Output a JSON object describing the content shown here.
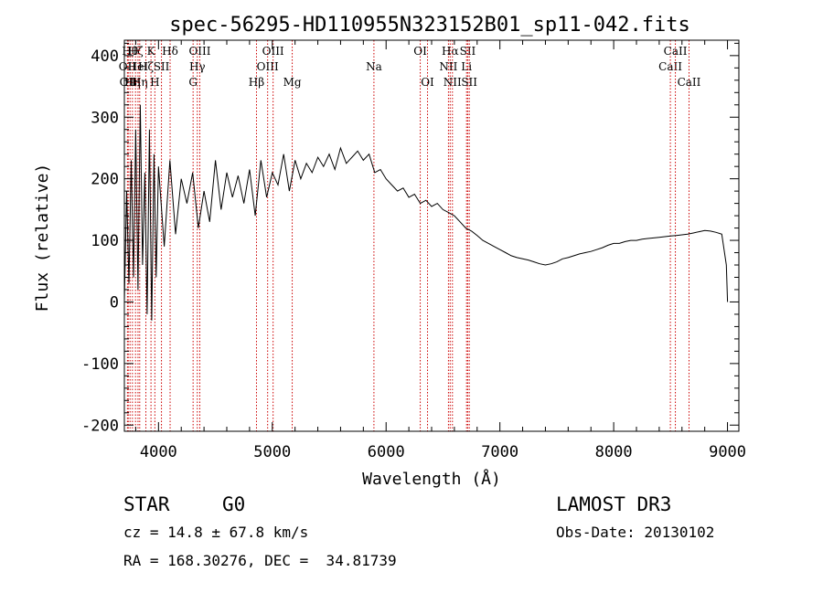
{
  "chart_data": {
    "type": "line",
    "title": "spec-56295-HD110955N323152B01_sp11-042.fits",
    "xlabel": "Wavelength (Å)",
    "ylabel": "Flux (relative)",
    "xlim": [
      3700,
      9100
    ],
    "ylim": [
      -210,
      425
    ],
    "xticks": [
      4000,
      5000,
      6000,
      7000,
      8000,
      9000
    ],
    "yticks": [
      -200,
      -100,
      0,
      100,
      200,
      300,
      400
    ],
    "series": [
      {
        "name": "flux",
        "color": "#000000",
        "x": [
          3700,
          3720,
          3740,
          3760,
          3780,
          3800,
          3820,
          3840,
          3860,
          3880,
          3900,
          3920,
          3940,
          3960,
          3980,
          4000,
          4050,
          4100,
          4150,
          4200,
          4250,
          4300,
          4350,
          4400,
          4450,
          4500,
          4550,
          4600,
          4650,
          4700,
          4750,
          4800,
          4850,
          4900,
          4950,
          5000,
          5050,
          5100,
          5150,
          5200,
          5250,
          5300,
          5350,
          5400,
          5450,
          5500,
          5550,
          5600,
          5650,
          5700,
          5750,
          5800,
          5850,
          5900,
          5950,
          6000,
          6050,
          6100,
          6150,
          6200,
          6250,
          6300,
          6350,
          6400,
          6450,
          6500,
          6550,
          6600,
          6650,
          6700,
          6750,
          6800,
          6850,
          6900,
          6950,
          7000,
          7050,
          7100,
          7150,
          7200,
          7250,
          7300,
          7350,
          7400,
          7450,
          7500,
          7550,
          7600,
          7650,
          7700,
          7750,
          7800,
          7850,
          7900,
          7950,
          8000,
          8050,
          8100,
          8150,
          8200,
          8250,
          8300,
          8350,
          8400,
          8450,
          8500,
          8550,
          8600,
          8650,
          8700,
          8750,
          8800,
          8850,
          8900,
          8950,
          8990,
          9000
        ],
        "y": [
          0,
          180,
          30,
          230,
          40,
          280,
          20,
          320,
          60,
          210,
          -20,
          280,
          -30,
          240,
          40,
          220,
          90,
          230,
          110,
          200,
          160,
          210,
          120,
          180,
          130,
          230,
          150,
          210,
          170,
          205,
          160,
          215,
          140,
          230,
          170,
          210,
          190,
          240,
          180,
          230,
          200,
          225,
          210,
          235,
          220,
          240,
          215,
          250,
          225,
          235,
          245,
          230,
          240,
          210,
          215,
          200,
          190,
          180,
          185,
          170,
          175,
          160,
          165,
          155,
          160,
          150,
          145,
          140,
          130,
          120,
          115,
          108,
          100,
          95,
          90,
          85,
          80,
          75,
          72,
          70,
          68,
          65,
          62,
          60,
          62,
          65,
          70,
          72,
          75,
          78,
          80,
          82,
          85,
          88,
          92,
          95,
          95,
          98,
          100,
          100,
          102,
          103,
          104,
          105,
          106,
          107,
          108,
          109,
          110,
          112,
          114,
          116,
          115,
          113,
          110,
          60,
          0
        ]
      }
    ],
    "line_markers": [
      {
        "x": 3727,
        "label": "OII",
        "row": 1
      },
      {
        "x": 3734,
        "label": "OII",
        "row": 2
      },
      {
        "x": 3750,
        "label": "Hθ",
        "row": 0
      },
      {
        "x": 3771,
        "label": "Hη",
        "row": 2
      },
      {
        "x": 3798,
        "label": "Hζ",
        "row": 0
      },
      {
        "x": 3820,
        "label": "HeI",
        "row": 1
      },
      {
        "x": 3835,
        "label": "Hη",
        "row": 2
      },
      {
        "x": 3889,
        "label": "Hζ",
        "row": 1
      },
      {
        "x": 3934,
        "label": "K",
        "row": 0
      },
      {
        "x": 3968,
        "label": "H",
        "row": 2
      },
      {
        "x": 4026,
        "label": "SII",
        "row": 1
      },
      {
        "x": 4102,
        "label": "Hδ",
        "row": 0
      },
      {
        "x": 4304,
        "label": "G",
        "row": 2
      },
      {
        "x": 4341,
        "label": "Hγ",
        "row": 1
      },
      {
        "x": 4363,
        "label": "OIII",
        "row": 0
      },
      {
        "x": 4861,
        "label": "Hβ",
        "row": 2
      },
      {
        "x": 4959,
        "label": "OIII",
        "row": 1
      },
      {
        "x": 5007,
        "label": "OIII",
        "row": 0
      },
      {
        "x": 5175,
        "label": "Mg",
        "row": 2
      },
      {
        "x": 5893,
        "label": "Na",
        "row": 1
      },
      {
        "x": 6300,
        "label": "OI",
        "row": 0
      },
      {
        "x": 6364,
        "label": "OI",
        "row": 2
      },
      {
        "x": 6548,
        "label": "NII",
        "row": 1
      },
      {
        "x": 6563,
        "label": "Hα",
        "row": 0
      },
      {
        "x": 6583,
        "label": "NII",
        "row": 2
      },
      {
        "x": 6707,
        "label": "Li",
        "row": 1
      },
      {
        "x": 6717,
        "label": "SII",
        "row": 0
      },
      {
        "x": 6731,
        "label": "SII",
        "row": 2
      },
      {
        "x": 8498,
        "label": "CaII",
        "row": 1
      },
      {
        "x": 8542,
        "label": "CaII",
        "row": 0
      },
      {
        "x": 8662,
        "label": "CaII",
        "row": 2
      }
    ],
    "marker_color": "#cc0000"
  },
  "info": {
    "object_class": "STAR",
    "subclass": "G0",
    "survey": "LAMOST DR3",
    "redshift": "cz = 14.8 ± 67.8 km/s",
    "obs_date": "Obs-Date: 20130102",
    "coords": "RA = 168.30276, DEC =  34.81739"
  }
}
